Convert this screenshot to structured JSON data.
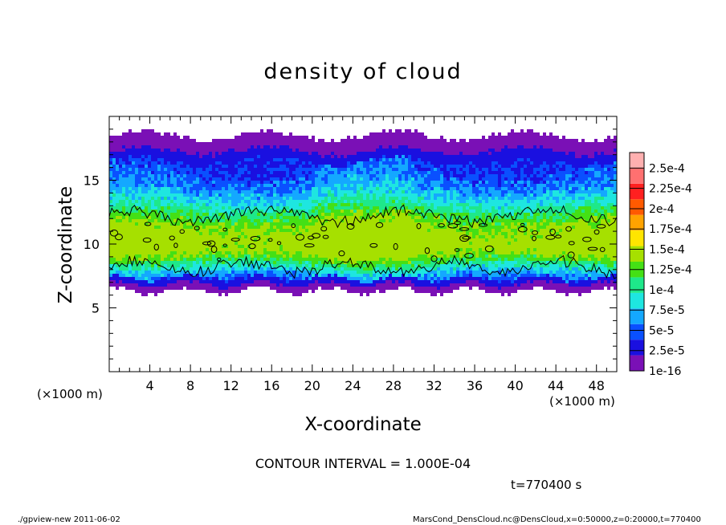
{
  "chart_data": {
    "type": "heatmap",
    "title": "density of cloud",
    "xlabel": "X-coordinate",
    "ylabel": "Z-coordinate",
    "x_unit": "(×1000 m)",
    "y_unit": "(×1000 m)",
    "xlim": [
      0,
      50
    ],
    "ylim": [
      0,
      20
    ],
    "x_ticks": [
      "4",
      "8",
      "12",
      "16",
      "20",
      "24",
      "28",
      "32",
      "36",
      "40",
      "44",
      "48"
    ],
    "y_ticks": [
      "5",
      "10",
      "15"
    ],
    "colorbar": {
      "labels": [
        "1e-16",
        "2.5e-5",
        "5e-5",
        "7.5e-5",
        "1e-4",
        "1.25e-4",
        "1.5e-4",
        "1.75e-4",
        "2e-4",
        "2.25e-4",
        "2.5e-4"
      ],
      "colors": [
        "#7a10b6",
        "#1a10e0",
        "#0a50ff",
        "#14a8ff",
        "#1ee6e0",
        "#1ee88a",
        "#44e015",
        "#a6e000",
        "#ffe500",
        "#ffa300",
        "#ff5a00",
        "#ff2020",
        "#ff7070",
        "#ffb0b0"
      ]
    },
    "cloud_profile": {
      "z_bottom": 6.3,
      "z_top": 18.5,
      "density_peak_z": 10.0,
      "contour_band_z": [
        8.2,
        12.2
      ]
    },
    "contour_interval_text": "CONTOUR INTERVAL = 1.000E-04",
    "time_text": "t=770400 s"
  },
  "footer": {
    "left": "./gpview-new  2011-06-02",
    "right": "MarsCond_DensCloud.nc@DensCloud,x=0:50000,z=0:20000,t=770400"
  }
}
